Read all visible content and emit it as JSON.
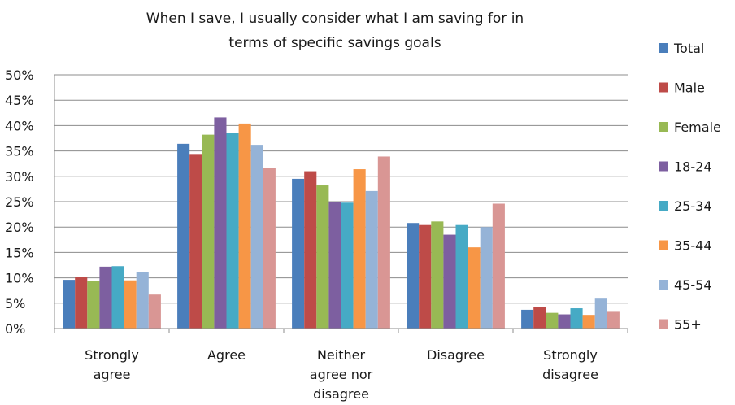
{
  "chart_data": {
    "type": "bar",
    "title": [
      "When I save, I usually consider what I am saving for in",
      "terms of specific savings goals"
    ],
    "categories": [
      [
        "Strongly",
        "agree"
      ],
      [
        "Agree"
      ],
      [
        "Neither",
        "agree nor",
        "disagree"
      ],
      [
        "Disagree"
      ],
      [
        "Strongly",
        "disagree"
      ]
    ],
    "ylim": [
      0,
      50
    ],
    "yticks": [
      "0%",
      "5%",
      "10%",
      "15%",
      "20%",
      "25%",
      "30%",
      "35%",
      "40%",
      "45%",
      "50%"
    ],
    "grid": true,
    "legend_position": "right",
    "series": [
      {
        "name": "Total",
        "color": "#4a7ebb",
        "values": [
          9.6,
          36.4,
          29.5,
          20.8,
          3.7
        ]
      },
      {
        "name": "Male",
        "color": "#be4b48",
        "values": [
          10.1,
          34.4,
          31.0,
          20.4,
          4.3
        ]
      },
      {
        "name": "Female",
        "color": "#98b954",
        "values": [
          9.3,
          38.2,
          28.2,
          21.1,
          3.1
        ]
      },
      {
        "name": "18-24",
        "color": "#7d5fa0",
        "values": [
          12.2,
          41.6,
          25.0,
          18.5,
          2.8
        ]
      },
      {
        "name": "25-34",
        "color": "#46aac5",
        "values": [
          12.3,
          38.6,
          24.8,
          20.4,
          4.0
        ]
      },
      {
        "name": "35-44",
        "color": "#f79646",
        "values": [
          9.5,
          40.4,
          31.4,
          16.0,
          2.7
        ]
      },
      {
        "name": "45-54",
        "color": "#95b3d7",
        "values": [
          11.1,
          36.2,
          27.1,
          20.0,
          5.9
        ]
      },
      {
        "name": "55+",
        "color": "#d99694",
        "values": [
          6.7,
          31.7,
          33.9,
          24.6,
          3.3
        ]
      }
    ]
  }
}
